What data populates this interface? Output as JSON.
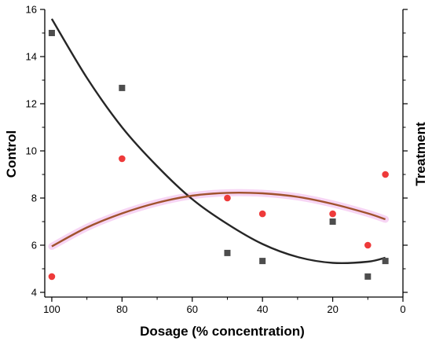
{
  "chart_data": {
    "type": "scatter",
    "xlabel": "Dosage (% concentration)",
    "ylabel_left": "Control",
    "ylabel_right": "Treatment",
    "xlim": [
      102,
      0
    ],
    "ylim": [
      3.8,
      16
    ],
    "x_reversed": true,
    "x_ticks": [
      100,
      80,
      60,
      40,
      20,
      0
    ],
    "y_ticks": [
      4,
      6,
      8,
      10,
      12,
      14,
      16
    ],
    "grid": false,
    "legend": "none",
    "series": [
      {
        "marker": "square",
        "color": "#4d4d4d",
        "points": [
          {
            "x": 100,
            "y": 15.0
          },
          {
            "x": 80,
            "y": 12.67
          },
          {
            "x": 50,
            "y": 5.67
          },
          {
            "x": 40,
            "y": 5.33
          },
          {
            "x": 20,
            "y": 7.0
          },
          {
            "x": 10,
            "y": 4.67
          },
          {
            "x": 5,
            "y": 5.33
          }
        ],
        "fit": {
          "color": "#262626",
          "x": [
            100,
            90,
            80,
            70,
            60,
            50,
            40,
            30,
            20,
            10,
            5
          ],
          "y": [
            15.6,
            13.1,
            11.0,
            9.35,
            7.95,
            6.9,
            6.05,
            5.5,
            5.25,
            5.3,
            5.47
          ]
        }
      },
      {
        "marker": "circle",
        "color": "#ee3a3a",
        "points": [
          {
            "x": 100,
            "y": 4.67
          },
          {
            "x": 80,
            "y": 9.67
          },
          {
            "x": 50,
            "y": 8.0
          },
          {
            "x": 40,
            "y": 7.33
          },
          {
            "x": 20,
            "y": 7.33
          },
          {
            "x": 10,
            "y": 6.0
          },
          {
            "x": 5,
            "y": 9.0
          }
        ],
        "fit": {
          "color": "#a0522d",
          "band_color": "#f3c3ef",
          "x": [
            100,
            90,
            80,
            70,
            60,
            50,
            40,
            30,
            20,
            10,
            5
          ],
          "y": [
            5.95,
            6.75,
            7.35,
            7.8,
            8.1,
            8.22,
            8.2,
            8.05,
            7.75,
            7.35,
            7.1
          ]
        }
      }
    ],
    "overlap_color": "#a4703a"
  }
}
